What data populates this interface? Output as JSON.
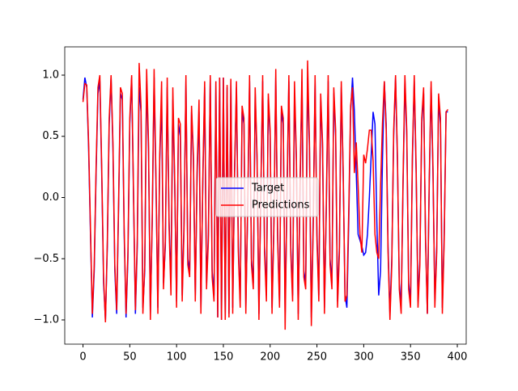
{
  "chart_data": {
    "type": "line",
    "x": [
      0,
      2,
      4,
      6,
      8,
      10,
      12,
      14,
      16,
      18,
      20,
      22,
      24,
      26,
      28,
      30,
      32,
      34,
      36,
      38,
      40,
      42,
      44,
      46,
      48,
      50,
      52,
      54,
      56,
      58,
      60,
      62,
      64,
      66,
      68,
      70,
      72,
      74,
      76,
      78,
      80,
      82,
      84,
      86,
      88,
      90,
      92,
      94,
      96,
      98,
      100,
      102,
      104,
      106,
      108,
      110,
      112,
      114,
      116,
      118,
      120,
      122,
      124,
      126,
      128,
      130,
      132,
      134,
      136,
      138,
      140,
      142,
      144,
      146,
      148,
      150,
      152,
      154,
      156,
      158,
      160,
      162,
      164,
      166,
      168,
      170,
      172,
      174,
      176,
      178,
      180,
      182,
      184,
      186,
      188,
      190,
      192,
      194,
      196,
      198,
      200,
      202,
      204,
      206,
      208,
      210,
      212,
      214,
      216,
      218,
      220,
      222,
      224,
      226,
      228,
      230,
      232,
      234,
      236,
      238,
      240,
      242,
      244,
      246,
      248,
      250,
      252,
      254,
      256,
      258,
      260,
      262,
      264,
      266,
      268,
      270,
      272,
      274,
      276,
      278,
      280,
      282,
      284,
      286,
      288,
      290,
      292,
      294,
      296,
      298,
      300,
      302,
      304,
      306,
      308,
      310,
      312,
      314,
      316,
      318,
      320,
      322,
      324,
      326,
      328,
      330,
      332,
      334,
      336,
      338,
      340,
      342,
      344,
      346,
      348,
      350,
      352,
      354,
      356,
      358,
      360,
      362,
      364,
      366,
      368,
      370,
      372,
      374,
      376,
      378,
      380,
      382,
      384,
      386,
      388,
      390
    ],
    "series": [
      {
        "name": "Target",
        "color": "#0000ff",
        "values": [
          0.8,
          0.98,
          0.9,
          0.4,
          -0.3,
          -0.98,
          -0.6,
          0.2,
          0.85,
          0.95,
          0.2,
          -0.7,
          -1.0,
          -0.4,
          0.6,
          0.98,
          0.4,
          -0.6,
          -0.95,
          -0.1,
          0.85,
          0.8,
          -0.3,
          -0.98,
          -0.5,
          0.6,
          0.98,
          0.0,
          -0.95,
          -0.4,
          0.9,
          0.7,
          -0.9,
          -0.6,
          0.95,
          0.4,
          -0.95,
          -0.2,
          0.98,
          0.1,
          -0.9,
          0.3,
          0.8,
          -0.7,
          -0.4,
          0.9,
          -0.2,
          -0.7,
          0.8,
          0.1,
          -0.85,
          0.6,
          0.5,
          -0.8,
          -0.2,
          0.95,
          -0.5,
          -0.6,
          0.7,
          0.3,
          -0.8,
          0.2,
          0.7,
          -0.9,
          0.1,
          0.9,
          -0.7,
          -0.3,
          0.98,
          -0.6,
          -0.8,
          0.95,
          -0.98,
          0.98,
          -1.0,
          0.98,
          -0.98,
          0.9,
          -0.95,
          0.95,
          -0.9,
          0.2,
          0.9,
          -0.4,
          -0.85,
          0.7,
          0.6,
          -0.9,
          -0.1,
          0.95,
          -0.5,
          -0.7,
          0.85,
          0.3,
          -0.95,
          0.0,
          0.95,
          -0.4,
          -0.8,
          0.8,
          0.5,
          -0.9,
          -0.2,
          0.98,
          -0.3,
          -0.85,
          0.7,
          0.6,
          -0.95,
          0.0,
          0.95,
          -0.4,
          -0.8,
          0.85,
          0.3,
          -0.95,
          0.1,
          0.95,
          -0.6,
          -0.7,
          0.98,
          0.4,
          -0.98,
          -0.2,
          0.95,
          -0.3,
          -0.8,
          0.8,
          0.4,
          -0.9,
          -0.1,
          0.95,
          -0.5,
          -0.7,
          0.85,
          0.5,
          -0.85,
          -0.4,
          0.9,
          0.2,
          -0.8,
          -0.9,
          -0.2,
          0.7,
          0.98,
          0.7,
          0.2,
          -0.3,
          -0.35,
          -0.4,
          -0.47,
          -0.45,
          -0.3,
          0.0,
          0.35,
          0.7,
          0.6,
          -0.2,
          -0.8,
          -0.6,
          0.3,
          0.95,
          0.6,
          -0.4,
          -0.95,
          -0.5,
          0.5,
          0.98,
          0.3,
          -0.7,
          -0.9,
          0.1,
          0.95,
          0.5,
          -0.7,
          -0.85,
          0.3,
          0.95,
          0.2,
          -0.85,
          -0.5,
          0.6,
          0.85,
          -0.3,
          -0.95,
          0.1,
          0.9,
          0.2,
          -0.85,
          -0.4,
          0.8,
          0.6,
          -0.9,
          -0.3,
          0.7,
          0.7
        ]
      },
      {
        "name": "Predictions",
        "color": "#ff0000",
        "values": [
          0.78,
          0.93,
          0.92,
          0.45,
          -0.25,
          -0.95,
          -0.55,
          0.25,
          0.9,
          1.0,
          0.25,
          -0.65,
          -1.02,
          -0.35,
          0.65,
          1.0,
          0.45,
          -0.55,
          -0.92,
          -0.05,
          0.9,
          0.85,
          -0.25,
          -0.95,
          -0.45,
          0.65,
          1.0,
          0.05,
          -0.92,
          -0.35,
          1.1,
          0.75,
          -0.95,
          -0.55,
          1.05,
          0.45,
          -1.0,
          -0.15,
          1.05,
          0.15,
          -0.95,
          0.35,
          0.95,
          -0.75,
          -0.35,
          0.98,
          -0.25,
          -0.8,
          0.9,
          0.15,
          -0.9,
          0.65,
          0.6,
          -0.85,
          -0.25,
          1.0,
          -0.55,
          -0.65,
          0.75,
          0.35,
          -0.85,
          0.25,
          0.8,
          -0.95,
          0.15,
          0.95,
          -0.75,
          -0.35,
          1.0,
          -0.65,
          -0.85,
          0.95,
          -0.98,
          0.98,
          -1.0,
          0.98,
          -1.0,
          0.92,
          -0.98,
          0.97,
          -0.95,
          0.25,
          0.95,
          -0.45,
          -0.9,
          0.75,
          0.65,
          -0.95,
          -0.05,
          1.0,
          -0.55,
          -0.75,
          0.9,
          0.35,
          -1.0,
          0.05,
          1.0,
          -0.45,
          -0.85,
          0.85,
          0.55,
          -0.95,
          -0.25,
          1.05,
          -0.35,
          -0.9,
          0.75,
          0.65,
          -1.08,
          0.05,
          1.0,
          -0.45,
          -0.85,
          0.95,
          0.35,
          -1.0,
          0.15,
          1.05,
          -0.65,
          -0.75,
          1.12,
          0.45,
          -1.05,
          -0.25,
          1.0,
          -0.35,
          -0.85,
          0.85,
          0.45,
          -0.95,
          -0.05,
          1.0,
          -0.55,
          -0.75,
          0.9,
          0.55,
          -0.9,
          -0.45,
          0.95,
          0.25,
          -0.85,
          -0.8,
          -0.1,
          0.75,
          0.9,
          0.2,
          0.45,
          0.1,
          -0.3,
          -0.45,
          0.35,
          0.28,
          0.4,
          0.55,
          0.55,
          0.3,
          -0.3,
          -0.45,
          -0.5,
          0.1,
          0.6,
          0.95,
          0.55,
          -0.45,
          -1.0,
          -0.55,
          0.55,
          1.0,
          0.35,
          -0.75,
          -0.95,
          0.15,
          1.0,
          0.55,
          -0.75,
          -0.9,
          0.35,
          1.0,
          0.25,
          -0.9,
          -0.55,
          0.65,
          0.9,
          -0.35,
          -0.95,
          0.15,
          0.95,
          0.25,
          -0.9,
          -0.45,
          0.85,
          0.65,
          -0.95,
          -0.35,
          0.7,
          0.72
        ]
      }
    ],
    "xlim": [
      -19.5,
      409.5
    ],
    "ylim": [
      -1.198,
      1.231
    ],
    "xticks": [
      0,
      50,
      100,
      150,
      200,
      250,
      300,
      350,
      400
    ],
    "yticks": [
      {
        "value": -1,
        "label": "−1.0"
      },
      {
        "value": -0.5,
        "label": "−0.5"
      },
      {
        "value": 0,
        "label": "0.0"
      },
      {
        "value": 0.5,
        "label": "0.5"
      },
      {
        "value": 1,
        "label": "1.0"
      }
    ],
    "legend": "center"
  }
}
